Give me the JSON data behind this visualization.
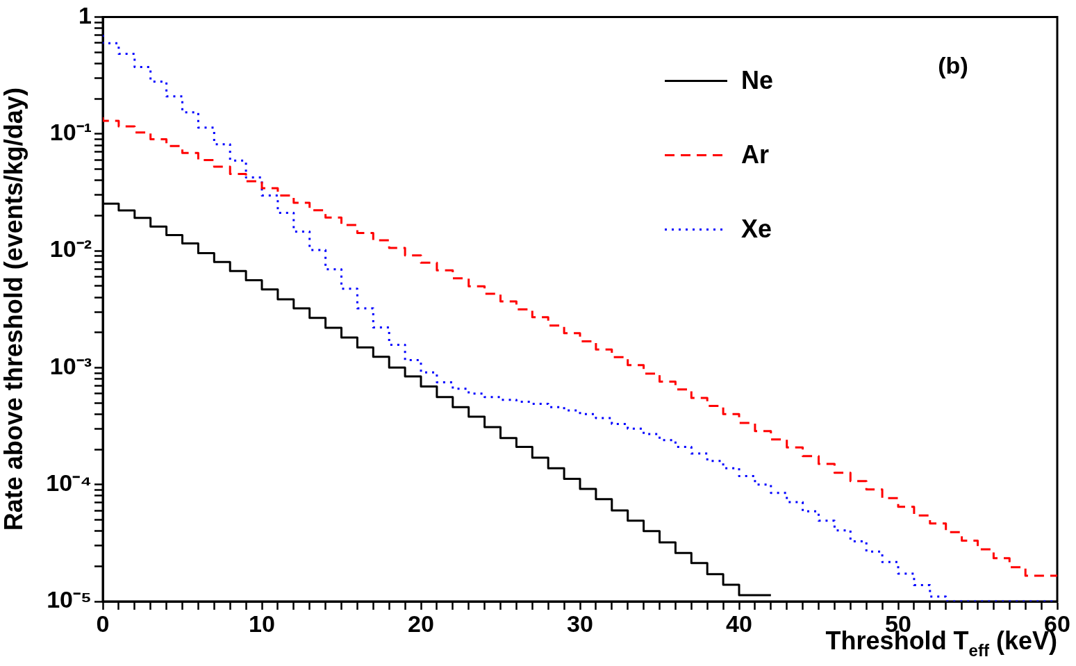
{
  "chart_data": {
    "type": "step",
    "ylabel": "Rate above threshold (events/kg/day)",
    "xlabel": "Threshold T$_{eff}$ (keV)",
    "annotations": [
      "(b)"
    ],
    "legend": "top right",
    "log": "y",
    "series": [
      {
        "name": "Ne",
        "color": "#000000",
        "line_style": "solid",
        "x": [
          0,
          1,
          2,
          3,
          4,
          5,
          6,
          7,
          8,
          9,
          10,
          11,
          12,
          13,
          14,
          15,
          16,
          17,
          18,
          19,
          20,
          21,
          22,
          23,
          24,
          25,
          26,
          27,
          28,
          29,
          30,
          31,
          32,
          33,
          34,
          35,
          36,
          37,
          38,
          39,
          40,
          41,
          42
        ],
        "values": [
          0.028,
          0.0253,
          0.0221,
          0.0191,
          0.0161,
          0.0136,
          0.01155,
          0.00955,
          0.008,
          0.0067,
          0.0056,
          0.00467,
          0.00384,
          0.00322,
          0.00266,
          0.00219,
          0.00181,
          0.00149,
          0.00124,
          0.001,
          0.00084,
          0.00069,
          0.00056,
          0.00046,
          0.00038,
          0.00031,
          0.00025,
          0.00021,
          0.00017,
          0.000138,
          0.000112,
          9.17e-05,
          7.5e-05,
          6e-05,
          4.9e-05,
          4e-05,
          3.2e-05,
          2.6e-05,
          2.13e-05,
          1.71e-05,
          1.39e-05,
          1.13e-05,
          1.13e-05
        ]
      },
      {
        "name": "Ar",
        "color": "#ff0000",
        "line_style": "dashed",
        "x": [
          0,
          1,
          2,
          3,
          4,
          5,
          6,
          7,
          8,
          9,
          10,
          11,
          12,
          13,
          14,
          15,
          16,
          17,
          18,
          19,
          20,
          21,
          22,
          23,
          24,
          25,
          26,
          27,
          28,
          29,
          30,
          31,
          32,
          33,
          34,
          35,
          36,
          37,
          38,
          39,
          40,
          41,
          42,
          43,
          44,
          45,
          46,
          47,
          48,
          49,
          50,
          51,
          52,
          53,
          54,
          55,
          56,
          57,
          58,
          59,
          60
        ],
        "values": [
          0.1386,
          0.129,
          0.1157,
          0.1027,
          0.09,
          0.0786,
          0.0686,
          0.0596,
          0.0523,
          0.0454,
          0.0393,
          0.0343,
          0.0297,
          0.0257,
          0.0222,
          0.0192,
          0.0166,
          0.0142,
          0.01227,
          0.01056,
          0.00913,
          0.00789,
          0.0068,
          0.0058,
          0.00497,
          0.00428,
          0.00368,
          0.00315,
          0.0027,
          0.00229,
          0.00197,
          0.00168,
          0.00143,
          0.00123,
          0.00105,
          0.00089,
          0.00076,
          0.00065,
          0.00055,
          0.00047,
          0.0004,
          0.000336,
          0.000286,
          0.000243,
          0.000208,
          0.000175,
          0.00015,
          0.000126,
          0.000107,
          9.08e-05,
          7.64e-05,
          6.44e-05,
          5.44e-05,
          4.64e-05,
          3.92e-05,
          3.31e-05,
          2.79e-05,
          2.34e-05,
          1.96e-05,
          1.66e-05,
          1.66e-05
        ]
      },
      {
        "name": "Xe",
        "color": "#0000ff",
        "line_style": "dotted",
        "x": [
          0,
          1,
          2,
          3,
          4,
          5,
          6,
          7,
          8,
          9,
          10,
          11,
          12,
          13,
          14,
          15,
          16,
          17,
          18,
          19,
          20,
          21,
          22,
          23,
          24,
          25,
          26,
          27,
          28,
          29,
          30,
          31,
          32,
          33,
          34,
          35,
          36,
          37,
          38,
          39,
          40,
          41,
          42,
          43,
          44,
          45,
          46,
          47,
          48,
          49,
          50,
          51,
          52,
          53,
          54,
          55,
          56,
          57,
          58,
          59,
          60
        ],
        "values": [
          0.702,
          0.596,
          0.483,
          0.373,
          0.28,
          0.209,
          0.153,
          0.113,
          0.0815,
          0.0591,
          0.0423,
          0.0297,
          0.0211,
          0.0146,
          0.01014,
          0.00693,
          0.00473,
          0.00322,
          0.00221,
          0.00157,
          0.00116,
          0.00091,
          0.00075,
          0.00066,
          0.0006,
          0.00056,
          0.00053,
          0.00051,
          0.00049,
          0.00046,
          0.00043,
          0.0004,
          0.00037,
          0.00033,
          0.0003,
          0.00027,
          0.00024,
          0.00021,
          0.000184,
          0.000159,
          0.000138,
          0.000118,
          0.0001,
          8.49e-05,
          7.08e-05,
          5.9e-05,
          4.9e-05,
          4.05e-05,
          3.27e-05,
          2.67e-05,
          2.17e-05,
          1.73e-05,
          1.38e-05,
          1.1e-05,
          1e-05,
          1e-05,
          1e-05,
          1e-05,
          1e-05,
          1e-05,
          1e-05
        ]
      }
    ],
    "xlim": [
      0,
      60
    ],
    "xticks": [
      0,
      {
        "value": 1,
        "label": null
      },
      {
        "value": 2,
        "label": null
      },
      {
        "value": 3,
        "label": null
      },
      {
        "value": 4,
        "label": null
      },
      {
        "value": 5,
        "label": null
      },
      {
        "value": 6,
        "label": null
      },
      {
        "value": 7,
        "label": null
      },
      {
        "value": 8,
        "label": null
      },
      {
        "value": 9,
        "label": null
      },
      10,
      {
        "value": 11,
        "label": null
      },
      {
        "value": 12,
        "label": null
      },
      {
        "value": 13,
        "label": null
      },
      {
        "value": 14,
        "label": null
      },
      {
        "value": 15,
        "label": null
      },
      {
        "value": 16,
        "label": null
      },
      {
        "value": 17,
        "label": null
      },
      {
        "value": 18,
        "label": null
      },
      {
        "value": 19,
        "label": null
      },
      20,
      {
        "value": 21,
        "label": null
      },
      {
        "value": 22,
        "label": null
      },
      {
        "value": 23,
        "label": null
      },
      {
        "value": 24,
        "label": null
      },
      {
        "value": 25,
        "label": null
      },
      {
        "value": 26,
        "label": null
      },
      {
        "value": 27,
        "label": null
      },
      {
        "value": 28,
        "label": null
      },
      {
        "value": 29,
        "label": null
      },
      30,
      {
        "value": 31,
        "label": null
      },
      {
        "value": 32,
        "label": null
      },
      {
        "value": 33,
        "label": null
      },
      {
        "value": 34,
        "label": null
      },
      {
        "value": 35,
        "label": null
      },
      {
        "value": 36,
        "label": null
      },
      {
        "value": 37,
        "label": null
      },
      {
        "value": 38,
        "label": null
      },
      {
        "value": 39,
        "label": null
      },
      40,
      {
        "value": 41,
        "label": null
      },
      {
        "value": 42,
        "label": null
      },
      {
        "value": 43,
        "label": null
      },
      {
        "value": 44,
        "label": null
      },
      {
        "value": 45,
        "label": null
      },
      {
        "value": 46,
        "label": null
      },
      {
        "value": 47,
        "label": null
      },
      {
        "value": 48,
        "label": null
      },
      {
        "value": 49,
        "label": null
      },
      50,
      {
        "value": 51,
        "label": null
      },
      {
        "value": 52,
        "label": null
      },
      {
        "value": 53,
        "label": null
      },
      {
        "value": 54,
        "label": null
      },
      {
        "value": 55,
        "label": null
      },
      {
        "value": 56,
        "label": null
      },
      {
        "value": 57,
        "label": null
      },
      {
        "value": 58,
        "label": null
      },
      {
        "value": 59,
        "label": null
      },
      60
    ],
    "ylim": [
      1e-05,
      1
    ],
    "yticks": [
      {
        "value": 1e-05,
        "label": "10⁻⁵"
      },
      {
        "value": 2e-05,
        "label": null
      },
      {
        "value": 3e-05,
        "label": null
      },
      {
        "value": 4e-05,
        "label": null
      },
      {
        "value": 5e-05,
        "label": null
      },
      {
        "value": 6e-05,
        "label": null
      },
      {
        "value": 7e-05,
        "label": null
      },
      {
        "value": 8e-05,
        "label": null
      },
      {
        "value": 9e-05,
        "label": null
      },
      {
        "value": 0.0001,
        "label": "10⁻⁴"
      },
      {
        "value": 0.0002,
        "label": null
      },
      {
        "value": 0.0003,
        "label": null
      },
      {
        "value": 0.0004,
        "label": null
      },
      {
        "value": 0.0005,
        "label": null
      },
      {
        "value": 0.0006,
        "label": null
      },
      {
        "value": 0.0007,
        "label": null
      },
      {
        "value": 0.0008,
        "label": null
      },
      {
        "value": 0.0009,
        "label": null
      },
      {
        "value": 0.001,
        "label": "10⁻³"
      },
      {
        "value": 0.002,
        "label": null
      },
      {
        "value": 0.003,
        "label": null
      },
      {
        "value": 0.004,
        "label": null
      },
      {
        "value": 0.005,
        "label": null
      },
      {
        "value": 0.006,
        "label": null
      },
      {
        "value": 0.007,
        "label": null
      },
      {
        "value": 0.008,
        "label": null
      },
      {
        "value": 0.009,
        "label": null
      },
      {
        "value": 0.01,
        "label": "10⁻²"
      },
      {
        "value": 0.02,
        "label": null
      },
      {
        "value": 0.03,
        "label": null
      },
      {
        "value": 0.04,
        "label": null
      },
      {
        "value": 0.05,
        "label": null
      },
      {
        "value": 0.06,
        "label": null
      },
      {
        "value": 0.07,
        "label": null
      },
      {
        "value": 0.08,
        "label": null
      },
      {
        "value": 0.09,
        "label": null
      },
      {
        "value": 0.1,
        "label": "10⁻¹"
      },
      {
        "value": 0.2,
        "label": null
      },
      {
        "value": 0.3,
        "label": null
      },
      {
        "value": 0.4,
        "label": null
      },
      {
        "value": 0.5,
        "label": null
      },
      {
        "value": 0.6,
        "label": null
      },
      {
        "value": 0.7,
        "label": null
      },
      {
        "value": 0.8,
        "label": null
      },
      {
        "value": 0.9,
        "label": null
      },
      1
    ]
  }
}
